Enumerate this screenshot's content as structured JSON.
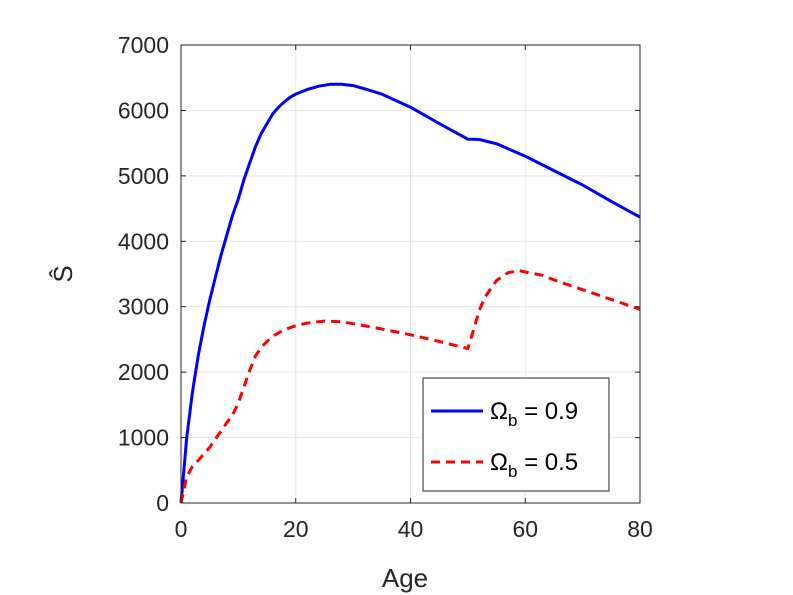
{
  "chart_data": {
    "type": "line",
    "xlabel": "Age",
    "ylabel": "Ŝ",
    "xlim": [
      0,
      80
    ],
    "ylim": [
      0,
      7000
    ],
    "xticks": [
      "0",
      "20",
      "40",
      "60",
      "80"
    ],
    "yticks": [
      "0",
      "1000",
      "2000",
      "3000",
      "4000",
      "5000",
      "6000",
      "7000"
    ],
    "grid": true,
    "legend_position": "bottom-right",
    "series": [
      {
        "name": "Ω_b = 0.9",
        "legend_symbol": "Ω",
        "legend_sub": "b",
        "legend_value": " = 0.9",
        "color": "#0000ff",
        "style": "solid",
        "x": [
          0,
          0.5,
          1,
          2,
          3,
          4,
          5,
          6,
          7,
          8,
          9,
          10,
          11,
          12,
          13,
          14,
          15,
          16,
          17,
          18,
          19,
          20,
          22,
          24,
          26,
          27,
          28,
          30,
          32,
          35,
          40,
          45,
          50,
          51,
          52,
          55,
          60,
          65,
          70,
          75,
          80
        ],
        "values": [
          0,
          500,
          1000,
          1700,
          2250,
          2700,
          3100,
          3450,
          3800,
          4100,
          4400,
          4650,
          4950,
          5200,
          5450,
          5650,
          5800,
          5950,
          6050,
          6130,
          6200,
          6250,
          6320,
          6370,
          6400,
          6400,
          6400,
          6380,
          6330,
          6250,
          6050,
          5800,
          5560,
          5560,
          5555,
          5490,
          5300,
          5080,
          4860,
          4610,
          4370
        ]
      },
      {
        "name": "Ω_b = 0.5",
        "legend_symbol": "Ω",
        "legend_sub": "b",
        "legend_value": " = 0.5",
        "color": "#ff0000",
        "style": "dashed",
        "x": [
          0,
          0.5,
          1,
          2,
          3,
          4,
          5,
          6,
          7,
          8,
          9,
          10,
          11,
          12,
          13,
          14,
          15,
          16,
          18,
          20,
          22,
          25,
          28,
          30,
          35,
          40,
          45,
          50,
          51,
          52,
          53,
          55,
          57,
          59,
          60,
          63,
          65,
          70,
          75,
          80
        ],
        "values": [
          0,
          200,
          400,
          560,
          650,
          750,
          850,
          980,
          1100,
          1230,
          1350,
          1530,
          1780,
          2030,
          2250,
          2380,
          2470,
          2550,
          2650,
          2710,
          2750,
          2780,
          2770,
          2740,
          2660,
          2570,
          2470,
          2360,
          2650,
          2950,
          3150,
          3400,
          3520,
          3550,
          3530,
          3480,
          3410,
          3260,
          3110,
          2960
        ]
      }
    ]
  }
}
